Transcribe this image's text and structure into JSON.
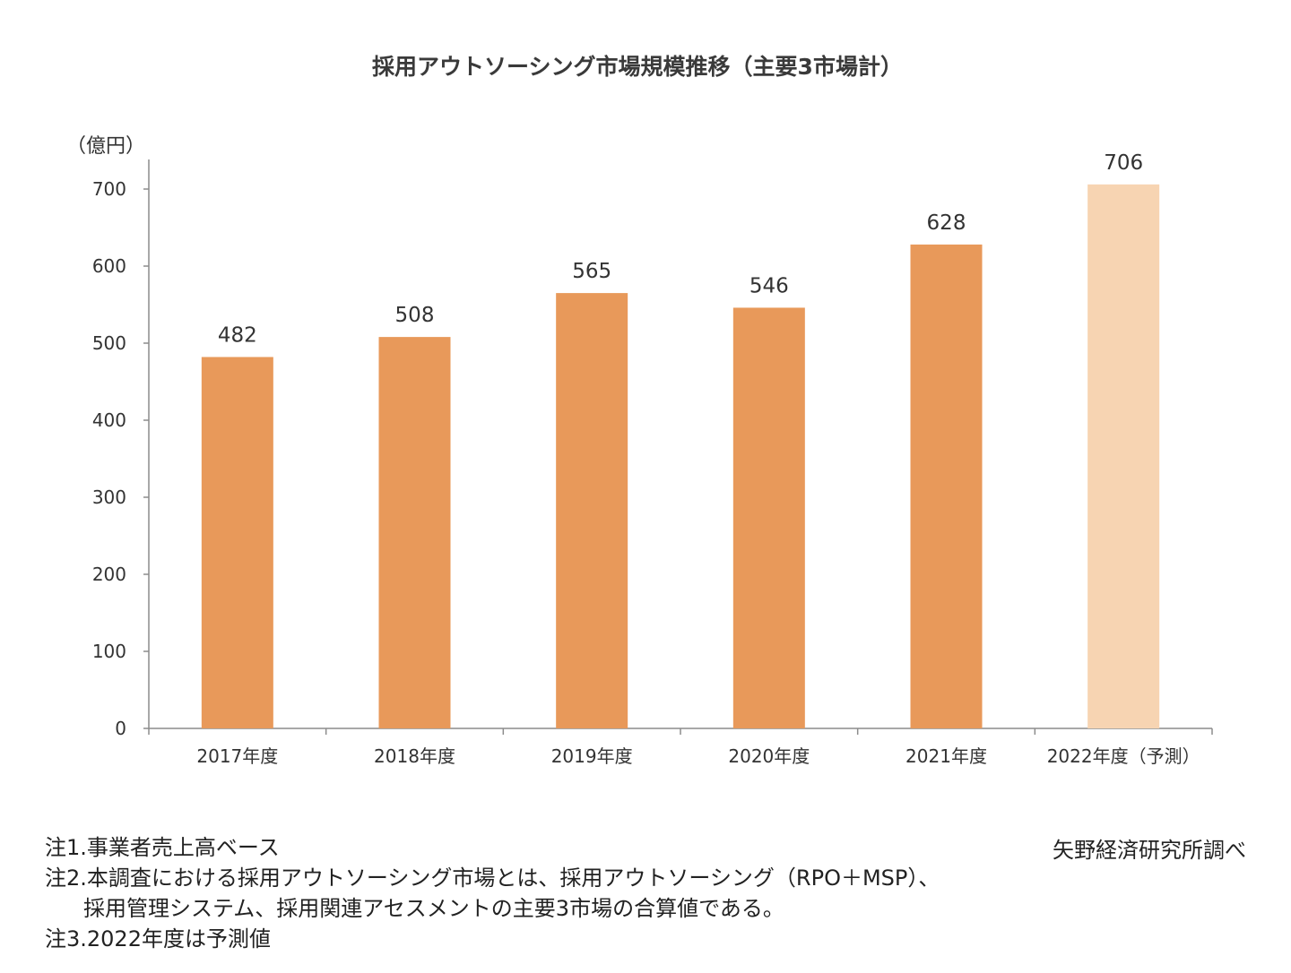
{
  "colors": {
    "bar": "#E8995A",
    "bar_forecast": "#F7D4B2",
    "axis": "#8c8c8c",
    "text": "#333333"
  },
  "chart_data": {
    "type": "bar",
    "title": "採用アウトソーシング市場規模推移（主要3市場計）",
    "ylabel": "（億円）",
    "xlabel": "",
    "categories": [
      "2017年度",
      "2018年度",
      "2019年度",
      "2020年度",
      "2021年度",
      "2022年度（予測）"
    ],
    "values": [
      482,
      508,
      565,
      546,
      628,
      706
    ],
    "forecast": [
      false,
      false,
      false,
      false,
      false,
      true
    ],
    "ylim": [
      0,
      700
    ],
    "yticks": [
      0,
      100,
      200,
      300,
      400,
      500,
      600,
      700
    ],
    "grid": false
  },
  "notes": {
    "note1": "注1.事業者売上高ベース",
    "note2_line1": "注2.本調査における採用アウトソーシング市場とは、採用アウトソーシング（RPO＋MSP）、",
    "note2_line2": "採用管理システム、採用関連アセスメントの主要3市場の合算値である。",
    "note3": "注3.2022年度は予測値"
  },
  "source": "矢野経済研究所調べ"
}
